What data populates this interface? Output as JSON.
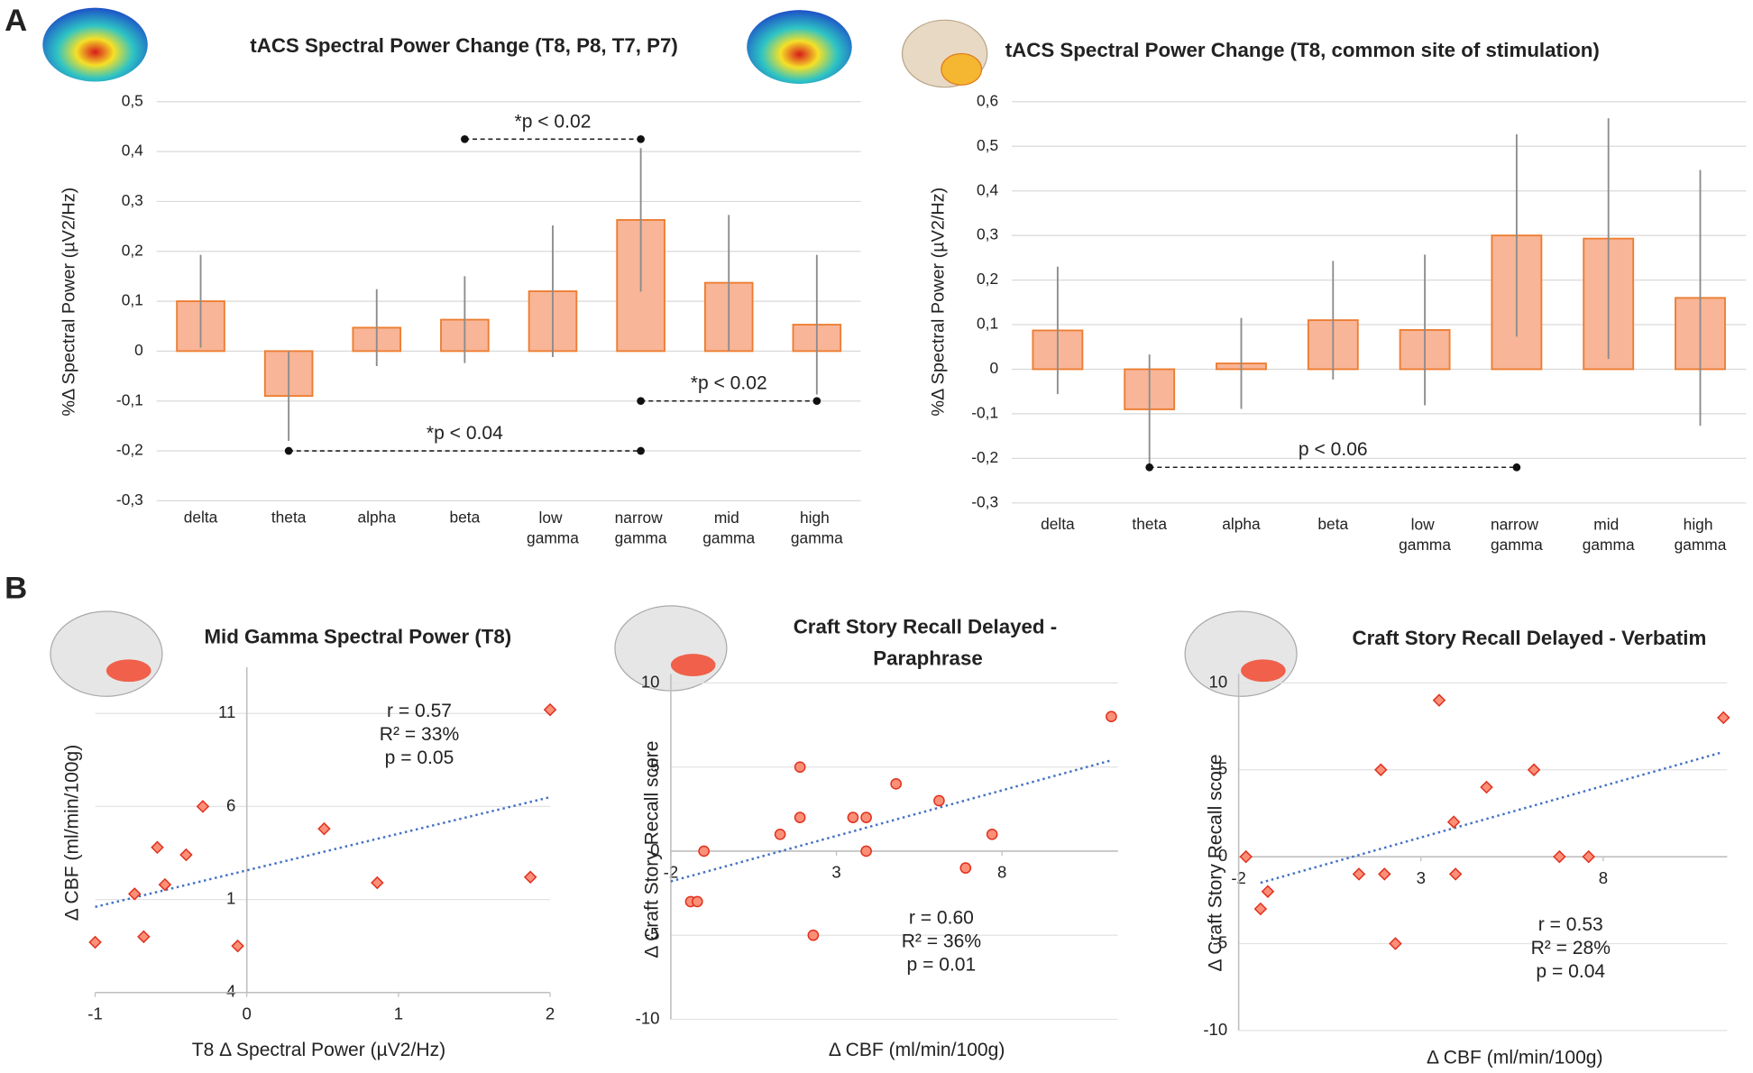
{
  "panel_labels": [
    "A",
    "B"
  ],
  "chart_data": [
    {
      "type": "bar",
      "title": "tACS Spectral Power Change (T8, P8, T7, P7)",
      "y_label": "%Δ Spectral Power (µV2/Hz)",
      "categories": [
        "delta",
        "theta",
        "alpha",
        "beta",
        "low gamma",
        "narrow gamma",
        "mid gamma",
        "high gamma"
      ],
      "values": [
        0.1,
        -0.09,
        0.047,
        0.063,
        0.12,
        0.263,
        0.137,
        0.053
      ],
      "errors": [
        0.093,
        0.09,
        0.077,
        0.087,
        0.132,
        0.144,
        0.136,
        0.14
      ],
      "color": "#f8b597",
      "edge_color": "#ed7d31",
      "error_color": "#8c8c8c",
      "ylim": [
        -0.3,
        0.5
      ],
      "yticks": [
        {
          "value": -0.3,
          "label": "-0,3"
        },
        {
          "value": -0.2,
          "label": "-0,2"
        },
        {
          "value": -0.1,
          "label": "-0,1"
        },
        0,
        {
          "value": 0.1,
          "label": "0,1"
        },
        {
          "value": 0.2,
          "label": "0,2"
        },
        {
          "value": 0.3,
          "label": "0,3"
        },
        {
          "value": 0.4,
          "label": "0,4"
        },
        {
          "value": 0.5,
          "label": "0,5"
        }
      ],
      "grid": true,
      "annotations": [
        {
          "text": "*p < 0.02",
          "from": 3,
          "to": 5,
          "y": 0.425
        },
        {
          "text": "*p < 0.04",
          "from": 1,
          "to": 5,
          "y": -0.2
        },
        {
          "text": "*p < 0.02",
          "from": 5,
          "to": 7,
          "y": -0.1
        }
      ]
    },
    {
      "type": "bar",
      "title": "tACS Spectral Power Change (T8, common site of stimulation)",
      "y_label": "%Δ Spectral Power (µV2/Hz)",
      "categories": [
        "delta",
        "theta",
        "alpha",
        "beta",
        "low gamma",
        "narrow gamma",
        "mid gamma",
        "high gamma"
      ],
      "values": [
        0.087,
        -0.09,
        0.013,
        0.11,
        0.088,
        0.3,
        0.293,
        0.16
      ],
      "errors": [
        0.143,
        0.123,
        0.102,
        0.133,
        0.169,
        0.227,
        0.27,
        0.287
      ],
      "color": "#f8b597",
      "edge_color": "#ed7d31",
      "error_color": "#8c8c8c",
      "ylim": [
        -0.3,
        0.6
      ],
      "yticks": [
        {
          "value": -0.3,
          "label": "-0,3"
        },
        {
          "value": -0.2,
          "label": "-0,2"
        },
        {
          "value": -0.1,
          "label": "-0,1"
        },
        0,
        {
          "value": 0.1,
          "label": "0,1"
        },
        {
          "value": 0.2,
          "label": "0,2"
        },
        {
          "value": 0.3,
          "label": "0,3"
        },
        {
          "value": 0.4,
          "label": "0,4"
        },
        {
          "value": 0.5,
          "label": "0,5"
        },
        {
          "value": 0.6,
          "label": "0,6"
        }
      ],
      "grid": true,
      "annotations": [
        {
          "text": "p < 0.06",
          "from": 1,
          "to": 5,
          "y": -0.22
        }
      ]
    },
    {
      "type": "scatter",
      "title": "Mid Gamma Spectral Power (T8)",
      "x_label": "T8 Δ Spectral Power (µV2/Hz)",
      "y_label": "Δ CBF (ml/min/100g)",
      "x": [
        2.0,
        1.87,
        0.86,
        0.51,
        -0.29,
        -0.4,
        -0.59,
        -0.54,
        -0.74,
        -1.0,
        -0.68,
        -0.06
      ],
      "values": [
        11.2,
        2.2,
        1.9,
        4.8,
        6.0,
        3.4,
        3.8,
        1.8,
        1.3,
        -1.3,
        -1.0,
        -1.5
      ],
      "marker": "diamond",
      "color": "#fb8f77",
      "edge_color": "#e0301e",
      "trend_x": [
        -1,
        2
      ],
      "trend_y": [
        0.6,
        6.5
      ],
      "trend_color": "#4472c4",
      "xlim": [
        -1,
        2
      ],
      "xticks": [
        -1,
        0,
        1,
        2
      ],
      "ylim": [
        -4,
        13
      ],
      "yticks": [
        -4,
        1,
        6,
        11
      ],
      "x_axis_at": "bottom",
      "y_axis_at": "zero",
      "grid": true,
      "annotations": [
        "r = 0.57",
        "R² = 33%",
        "p = 0.05"
      ]
    },
    {
      "type": "scatter",
      "title": "Craft Story Recall Delayed - Paraphrase",
      "x_label": "Δ CBF (ml/min/100g)",
      "y_label": "Δ Craft Story Recall score",
      "x": [
        11.3,
        1.9,
        4.8,
        1.9,
        1.3,
        3.5,
        3.9,
        6.1,
        7.7,
        3.9,
        6.9,
        -1.0,
        -1.4,
        -1.2,
        2.3
      ],
      "values": [
        8,
        5,
        4,
        2,
        1,
        2,
        2,
        3,
        1,
        0,
        -1,
        0,
        -3,
        -3,
        -5
      ],
      "marker": "circle",
      "color": "#fb8f77",
      "edge_color": "#e0301e",
      "trend_x": [
        -2,
        11.3
      ],
      "trend_y": [
        -1.8,
        5.4
      ],
      "trend_color": "#4472c4",
      "xlim": [
        -2,
        11.5
      ],
      "xticks": [
        -2,
        3,
        8
      ],
      "ylim": [
        -10,
        10
      ],
      "yticks": [
        -10,
        -5,
        0,
        5,
        10
      ],
      "x_axis_at": "zero",
      "y_axis_at": "left",
      "grid": true,
      "annotations": [
        "r = 0.60",
        "R² = 36%",
        "p = 0.01"
      ]
    },
    {
      "type": "scatter",
      "title": "Craft Story Recall Delayed - Verbatim",
      "x_label": "Δ CBF (ml/min/100g)",
      "y_label": "Δ Craft Story Recall score",
      "x": [
        11.3,
        3.5,
        1.9,
        6.1,
        4.8,
        3.9,
        -1.8,
        6.8,
        7.6,
        1.3,
        2.0,
        3.95,
        -1.2,
        -1.4,
        2.3
      ],
      "values": [
        8,
        9,
        5,
        5,
        4,
        2,
        0,
        0,
        0,
        -1,
        -1,
        -1,
        -2,
        -3,
        -5
      ],
      "marker": "diamond",
      "color": "#fb8f77",
      "edge_color": "#e0301e",
      "trend_x": [
        -1.4,
        11.25
      ],
      "trend_y": [
        -1.5,
        6.0
      ],
      "trend_color": "#4472c4",
      "xlim": [
        -2,
        11.4
      ],
      "xticks": [
        -2,
        3,
        8
      ],
      "ylim": [
        -10,
        10
      ],
      "yticks": [
        -10,
        -5,
        0,
        5,
        10
      ],
      "x_axis_at": "zero",
      "y_axis_at": "left",
      "grid": true,
      "annotations": [
        "r = 0.53",
        "R² = 28%",
        "p = 0.04"
      ]
    }
  ]
}
